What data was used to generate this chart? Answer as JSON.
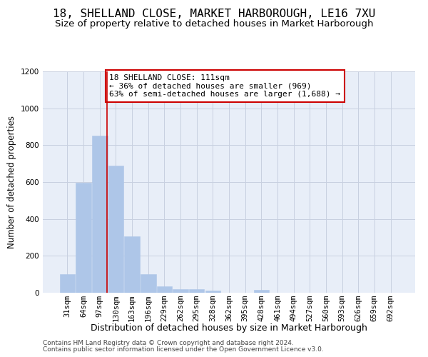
{
  "title": "18, SHELLAND CLOSE, MARKET HARBOROUGH, LE16 7XU",
  "subtitle": "Size of property relative to detached houses in Market Harborough",
  "xlabel": "Distribution of detached houses by size in Market Harborough",
  "ylabel": "Number of detached properties",
  "footer_line1": "Contains HM Land Registry data © Crown copyright and database right 2024.",
  "footer_line2": "Contains public sector information licensed under the Open Government Licence v3.0.",
  "categories": [
    "31sqm",
    "64sqm",
    "97sqm",
    "130sqm",
    "163sqm",
    "196sqm",
    "229sqm",
    "262sqm",
    "295sqm",
    "328sqm",
    "362sqm",
    "395sqm",
    "428sqm",
    "461sqm",
    "494sqm",
    "527sqm",
    "560sqm",
    "593sqm",
    "626sqm",
    "659sqm",
    "692sqm"
  ],
  "values": [
    100,
    595,
    850,
    690,
    305,
    100,
    33,
    20,
    18,
    10,
    0,
    0,
    15,
    0,
    0,
    0,
    0,
    0,
    0,
    0,
    0
  ],
  "bar_color": "#aec6e8",
  "bar_edgecolor": "#aec6e8",
  "grid_color": "#c8d0e0",
  "background_color": "#e8eef8",
  "vline_x": 2.43,
  "vline_color": "#cc0000",
  "annotation_text": "18 SHELLAND CLOSE: 111sqm\n← 36% of detached houses are smaller (969)\n63% of semi-detached houses are larger (1,688) →",
  "annotation_box_edgecolor": "#cc0000",
  "ylim": [
    0,
    1200
  ],
  "yticks": [
    0,
    200,
    400,
    600,
    800,
    1000,
    1200
  ],
  "title_fontsize": 11.5,
  "subtitle_fontsize": 9.5,
  "xlabel_fontsize": 9,
  "ylabel_fontsize": 8.5,
  "tick_fontsize": 7.5,
  "annotation_fontsize": 8,
  "footer_fontsize": 6.5
}
